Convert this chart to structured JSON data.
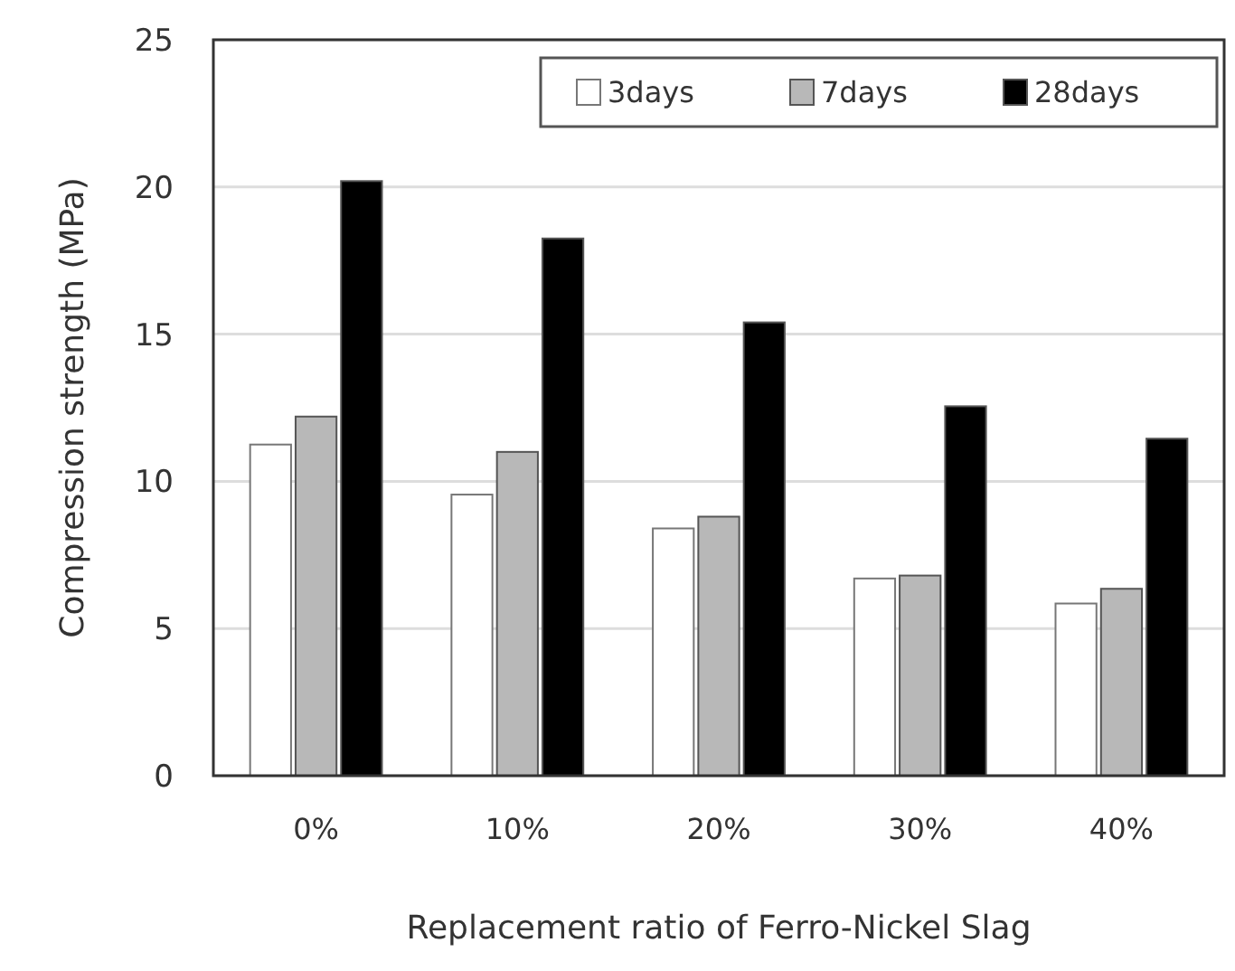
{
  "chart_data": {
    "type": "bar",
    "xlabel": "Replacement ratio of Ferro-Nickel Slag",
    "ylabel": "Compression strength (MPa)",
    "categories": [
      "0%",
      "10%",
      "20%",
      "30%",
      "40%"
    ],
    "series": [
      {
        "name": "3days",
        "color": "#ffffff",
        "values": [
          11.25,
          9.55,
          8.4,
          6.7,
          5.85
        ]
      },
      {
        "name": "7days",
        "color": "#b8b8b8",
        "values": [
          12.2,
          11.0,
          8.8,
          6.8,
          6.35
        ]
      },
      {
        "name": "28days",
        "color": "#000000",
        "values": [
          20.2,
          18.25,
          15.4,
          12.55,
          11.45
        ]
      }
    ],
    "ylim": [
      0,
      25
    ],
    "yticks": [
      0,
      5,
      10,
      15,
      20,
      25
    ],
    "grid": "y",
    "legend": "top right"
  }
}
